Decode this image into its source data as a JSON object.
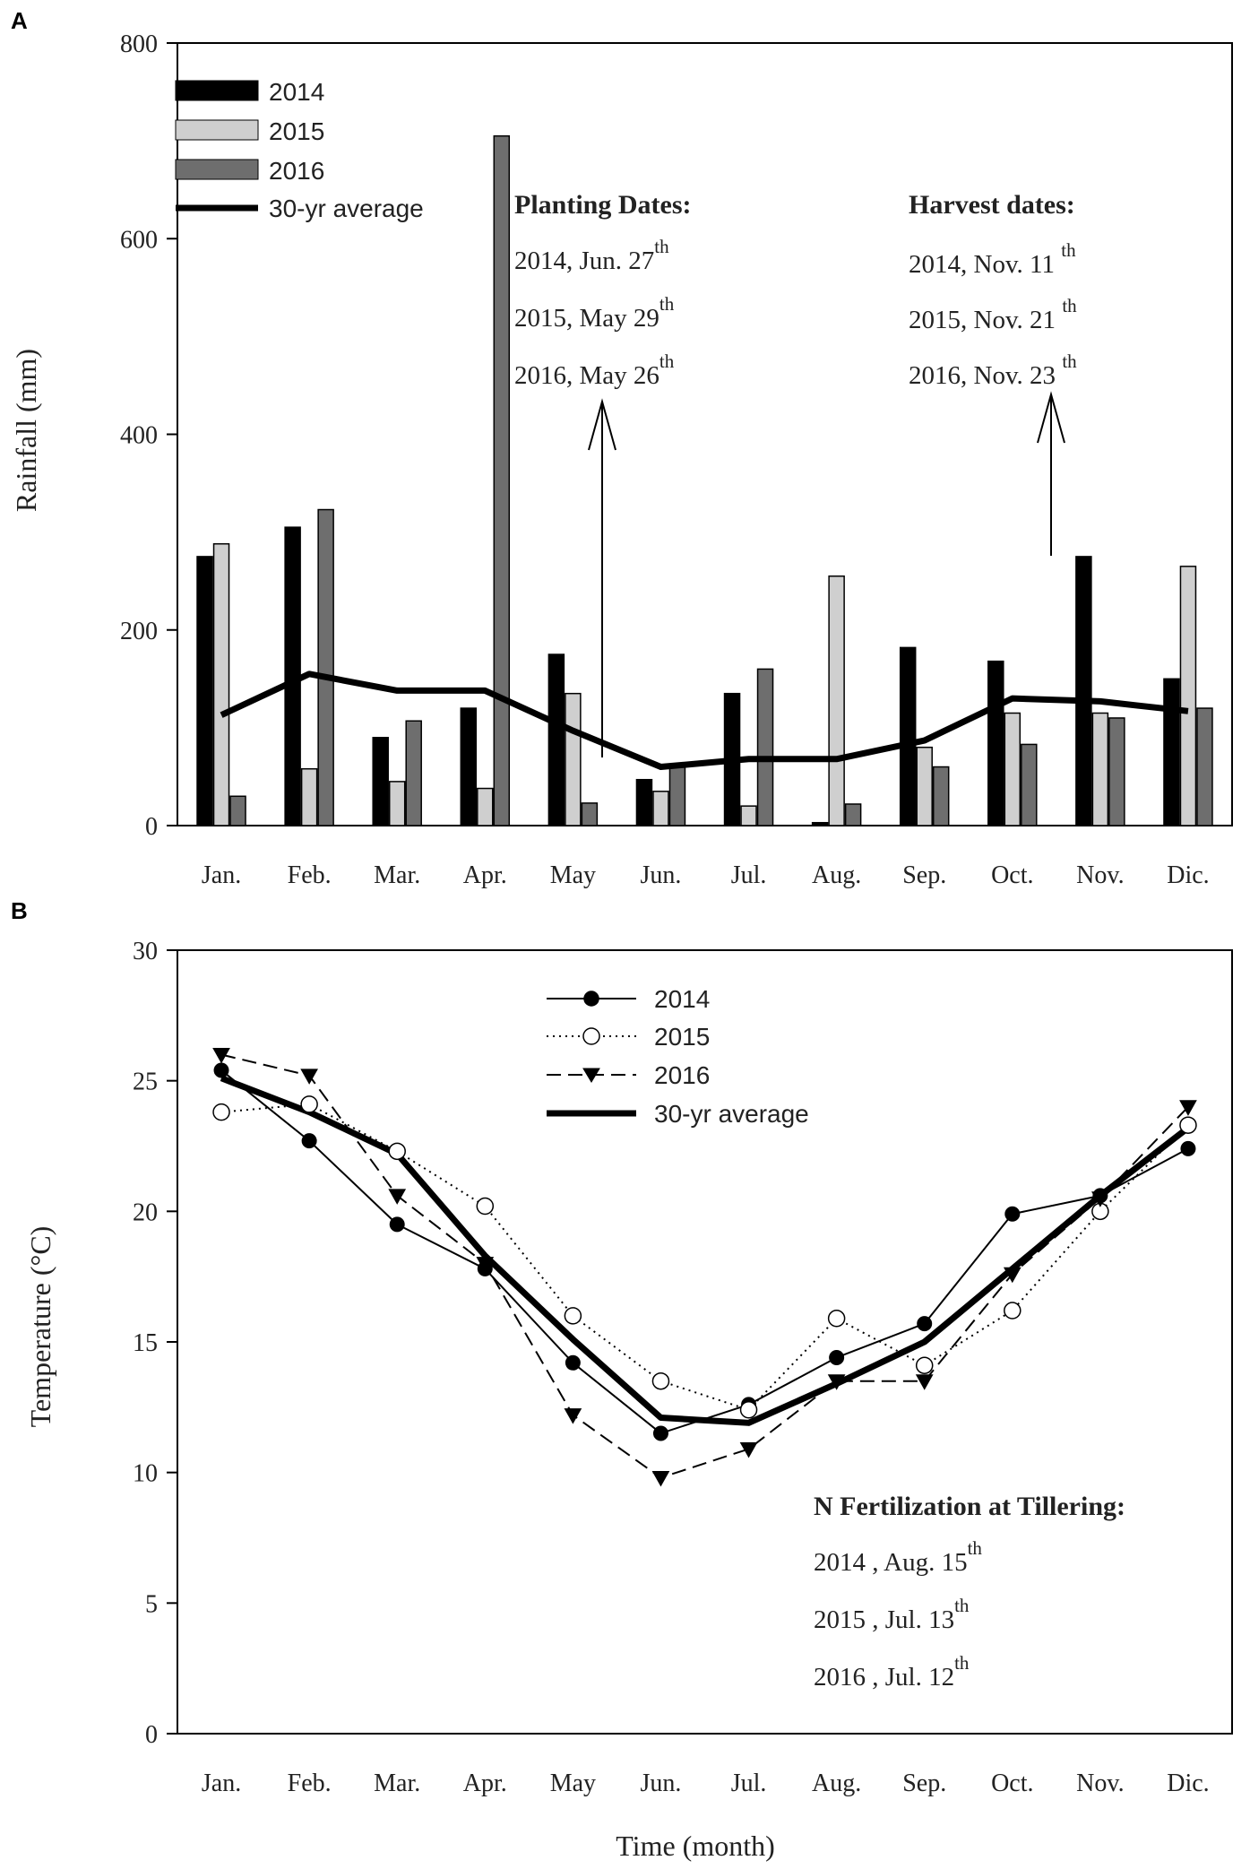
{
  "chart_data": [
    {
      "panel": "A",
      "type": "bar",
      "xlabel": "",
      "ylabel": "Rainfall (mm)",
      "ylim": [
        0,
        800
      ],
      "yticks": [
        0,
        200,
        400,
        600,
        800
      ],
      "categories": [
        "Jan.",
        "Feb.",
        "Mar.",
        "Apr.",
        "May",
        "Jun.",
        "Jul.",
        "Aug.",
        "Sep.",
        "Oct.",
        "Nov.",
        "Dic."
      ],
      "series": [
        {
          "name": "2014",
          "kind": "bar",
          "color": "#000000",
          "values": [
            275,
            305,
            90,
            120,
            175,
            47,
            135,
            3,
            182,
            168,
            275,
            150
          ]
        },
        {
          "name": "2015",
          "kind": "bar",
          "color": "#cfcfcf",
          "values": [
            288,
            58,
            45,
            38,
            135,
            35,
            20,
            255,
            80,
            115,
            115,
            265
          ]
        },
        {
          "name": "2016",
          "kind": "bar",
          "color": "#6e6e6e",
          "values": [
            30,
            323,
            107,
            705,
            23,
            60,
            160,
            22,
            60,
            83,
            110,
            120
          ]
        },
        {
          "name": "30-yr average",
          "kind": "line",
          "color": "#000000",
          "values": [
            113,
            155,
            138,
            138,
            97,
            60,
            68,
            68,
            87,
            130,
            127,
            117
          ]
        }
      ],
      "legend_position": "top-left",
      "annotations": [
        {
          "title": "Planting Dates:",
          "lines": [
            {
              "text": "2014, Jun. 27",
              "sup": "th"
            },
            {
              "text": "2015, May 29",
              "sup": "th"
            },
            {
              "text": "2016, May 26",
              "sup": "th"
            }
          ],
          "arrow_month": "May"
        },
        {
          "title": "Harvest dates:",
          "lines": [
            {
              "text": "2014, Nov. 11 ",
              "sup": "th"
            },
            {
              "text": "2015, Nov. 21 ",
              "sup": "th"
            },
            {
              "text": "2016, Nov. 23 ",
              "sup": "th"
            }
          ],
          "arrow_month": "Nov."
        }
      ]
    },
    {
      "panel": "B",
      "type": "line",
      "xlabel": "Time (month)",
      "ylabel": "Temperature (°C)",
      "ylim": [
        0,
        30
      ],
      "yticks": [
        0,
        5,
        10,
        15,
        20,
        25,
        30
      ],
      "categories": [
        "Jan.",
        "Feb.",
        "Mar.",
        "Apr.",
        "May",
        "Jun.",
        "Jul.",
        "Aug.",
        "Sep.",
        "Oct.",
        "Nov.",
        "Dic."
      ],
      "series": [
        {
          "name": "2014",
          "marker": "filled-circle",
          "dash": "solid",
          "values": [
            25.4,
            22.7,
            19.5,
            17.8,
            14.2,
            11.5,
            12.6,
            14.4,
            15.7,
            19.9,
            20.6,
            22.4
          ]
        },
        {
          "name": "2015",
          "marker": "open-circle",
          "dash": "dotted",
          "values": [
            23.8,
            24.1,
            22.3,
            20.2,
            16.0,
            13.5,
            12.4,
            15.9,
            14.1,
            16.2,
            20.0,
            23.3
          ]
        },
        {
          "name": "2016",
          "marker": "filled-triangle-down",
          "dash": "dashed",
          "values": [
            26.0,
            25.2,
            20.6,
            18.0,
            12.2,
            9.8,
            10.9,
            13.5,
            13.5,
            17.6,
            20.5,
            24.0
          ]
        },
        {
          "name": "30-yr average",
          "marker": "none",
          "dash": "bold",
          "values": [
            25.1,
            23.8,
            22.2,
            18.3,
            15.1,
            12.1,
            11.9,
            13.4,
            15.0,
            17.8,
            20.6,
            23.2
          ]
        }
      ],
      "legend_position": "top-center",
      "annotations": [
        {
          "title": "N Fertilization at Tillering:",
          "lines": [
            {
              "text": "2014 , Aug. 15",
              "sup": "th"
            },
            {
              "text": "2015 , Jul. 13",
              "sup": "th"
            },
            {
              "text": "2016 , Jul. 12",
              "sup": "th"
            }
          ]
        }
      ]
    }
  ]
}
